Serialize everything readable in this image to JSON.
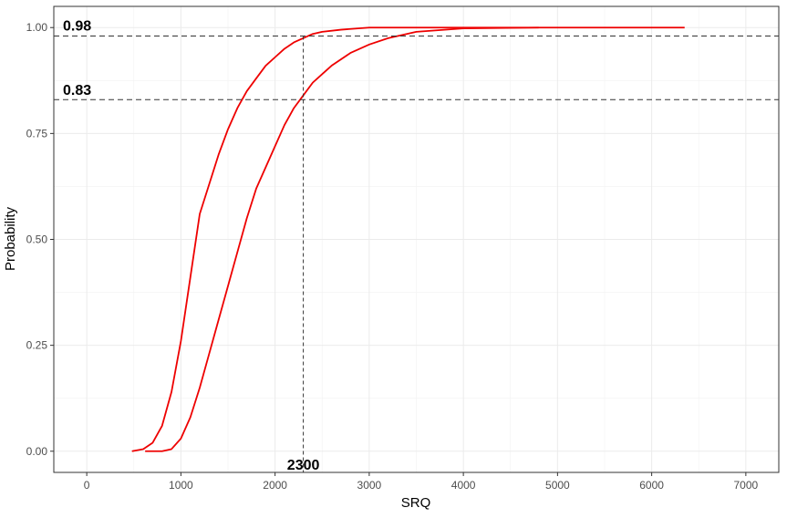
{
  "chart_data": {
    "type": "line",
    "title": "",
    "xlabel": "SRQ",
    "ylabel": "Probability",
    "xlim": [
      -350,
      7350
    ],
    "ylim": [
      -0.05,
      1.05
    ],
    "x_ticks": [
      0,
      1000,
      2000,
      3000,
      4000,
      5000,
      6000,
      7000
    ],
    "x_tick_labels": [
      "0",
      "1000",
      "2000",
      "3000",
      "4000",
      "5000",
      "6000",
      "7000"
    ],
    "y_ticks": [
      0,
      0.25,
      0.5,
      0.75,
      1
    ],
    "y_tick_labels": [
      "0.00",
      "0.25",
      "0.50",
      "0.75",
      "1.00"
    ],
    "grid": true,
    "legend": "none",
    "line_color": "#ee0000",
    "series": [
      {
        "x": [
          480,
          600,
          700,
          800,
          900,
          1000,
          1100,
          1200,
          1300,
          1400,
          1500,
          1600,
          1650,
          1700,
          1800,
          1900,
          2000,
          2100,
          2200,
          2300,
          2400,
          2500,
          2700,
          3000,
          3500,
          4000,
          4800,
          6350
        ],
        "y": [
          0,
          0.005,
          0.02,
          0.06,
          0.14,
          0.26,
          0.41,
          0.56,
          0.63,
          0.7,
          0.76,
          0.81,
          0.83,
          0.85,
          0.88,
          0.91,
          0.93,
          0.95,
          0.965,
          0.975,
          0.985,
          0.99,
          0.995,
          1,
          1,
          1,
          1,
          1
        ]
      },
      {
        "x": [
          620,
          800,
          900,
          1000,
          1100,
          1200,
          1300,
          1400,
          1500,
          1600,
          1700,
          1800,
          1900,
          2000,
          2100,
          2200,
          2300,
          2400,
          2500,
          2600,
          2800,
          3000,
          3200,
          3500,
          4000,
          4800
        ],
        "y": [
          0,
          0,
          0.005,
          0.03,
          0.08,
          0.15,
          0.23,
          0.31,
          0.39,
          0.47,
          0.55,
          0.62,
          0.67,
          0.72,
          0.77,
          0.81,
          0.84,
          0.87,
          0.89,
          0.91,
          0.94,
          0.96,
          0.975,
          0.99,
          0.998,
          1
        ]
      }
    ],
    "reference_lines": {
      "h": [
        0.98,
        0.83
      ],
      "v": [
        2300
      ]
    },
    "annotations": {
      "h_upper": "0.98",
      "h_lower": "0.83",
      "v": "2300"
    }
  }
}
